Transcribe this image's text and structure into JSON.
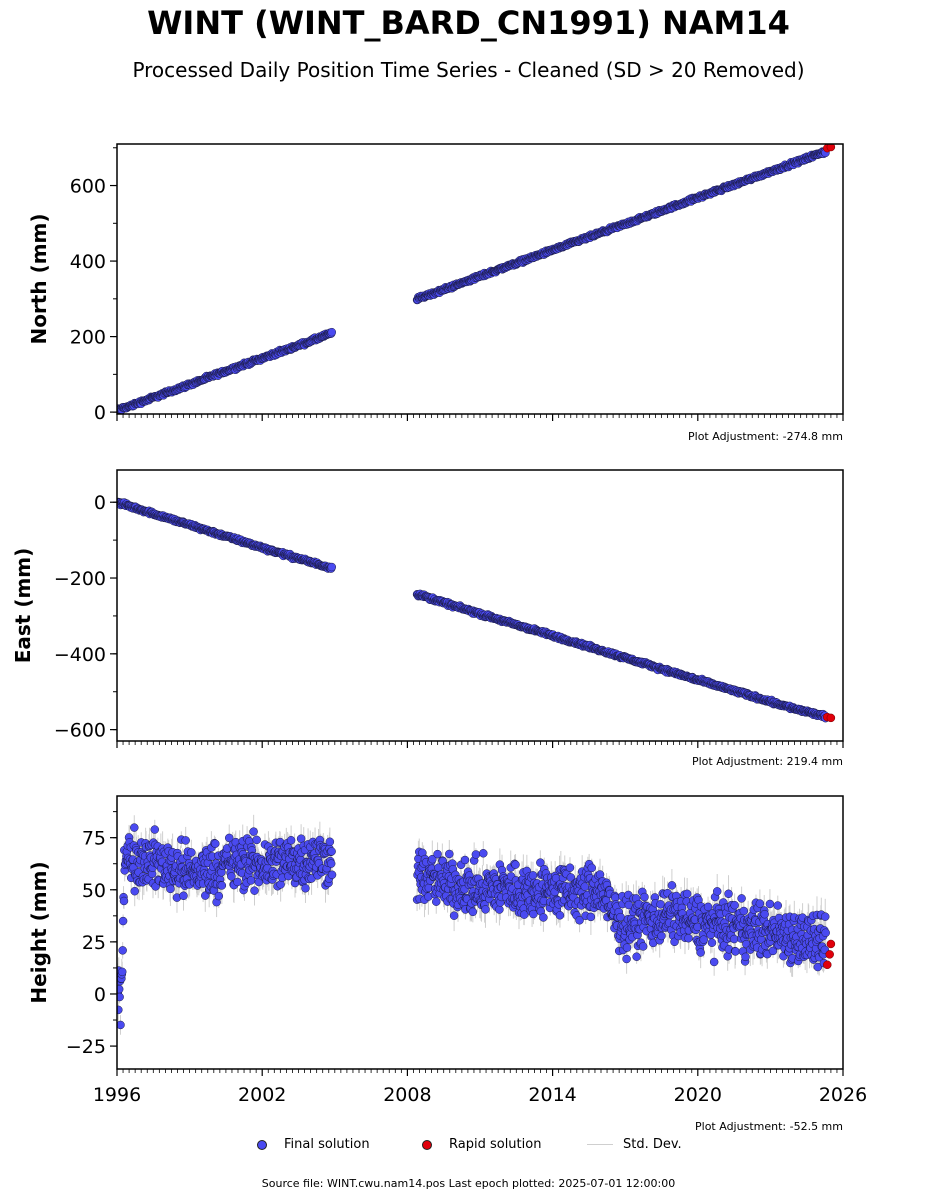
{
  "title": "WINT (WINT_BARD_CN1991) NAM14",
  "subtitle": "Processed Daily Position Time Series - Cleaned (SD > 20 Removed)",
  "colors": {
    "final": "#4a4af0",
    "rapid": "#e0000b",
    "stddev": "#cfcfcf",
    "edge": "#1a1a40"
  },
  "legend": {
    "final": "Final solution",
    "rapid": "Rapid solution",
    "stddev": "Std. Dev."
  },
  "source_note": "Source file: WINT.cwu.nam14.pos  Last epoch plotted: 2025-07-01 12:00:00",
  "chart_data": [
    {
      "type": "scatter",
      "ylabel": "North (mm)",
      "adjustment": "Plot Adjustment: -274.8 mm",
      "xlim": [
        1996,
        2026
      ],
      "ylim": [
        -5,
        710
      ],
      "yticks": [
        0,
        200,
        400,
        600
      ],
      "segments": [
        {
          "x": [
            1996.0,
            1996.5,
            1997.0,
            1998.0,
            1999.0,
            2000.0,
            2001.0,
            2002.0,
            2003.0,
            2004.0,
            2004.9
          ],
          "y": [
            5,
            15,
            27,
            50,
            73,
            97,
            120,
            143,
            165,
            188,
            210
          ]
        },
        {
          "x": [
            2008.4,
            2009.0,
            2010.0,
            2011.0,
            2012.0,
            2013.0,
            2014.0,
            2015.0,
            2016.0,
            2017.0,
            2018.0,
            2019.0,
            2020.0,
            2021.0,
            2022.0,
            2023.0,
            2024.0,
            2025.0,
            2025.3
          ],
          "y": [
            300,
            313,
            336,
            360,
            383,
            406,
            429,
            452,
            475,
            498,
            521,
            545,
            568,
            591,
            614,
            637,
            660,
            684,
            690
          ]
        }
      ],
      "rapid": {
        "x": [
          2025.35,
          2025.5
        ],
        "y": [
          699,
          702
        ]
      },
      "noise": 3
    },
    {
      "type": "scatter",
      "ylabel": "East (mm)",
      "adjustment": "Plot Adjustment: 219.4 mm",
      "xlim": [
        1996,
        2026
      ],
      "ylim": [
        -630,
        85
      ],
      "yticks": [
        0,
        -200,
        -400,
        -600
      ],
      "ytick_labels": [
        "0",
        "−200",
        "−400",
        "−600"
      ],
      "segments": [
        {
          "x": [
            1996.0,
            1997.0,
            1998.0,
            1999.0,
            2000.0,
            2001.0,
            2002.0,
            2003.0,
            2004.0,
            2004.9
          ],
          "y": [
            0,
            -20,
            -40,
            -60,
            -80,
            -100,
            -120,
            -139,
            -158,
            -174
          ]
        },
        {
          "x": [
            2008.4,
            2010.0,
            2012.0,
            2014.0,
            2016.0,
            2018.0,
            2020.0,
            2022.0,
            2024.0,
            2025.3
          ],
          "y": [
            -242,
            -275,
            -314,
            -352,
            -391,
            -430,
            -469,
            -507,
            -545,
            -566
          ]
        }
      ],
      "rapid": {
        "x": [
          2025.35,
          2025.5
        ],
        "y": [
          -567,
          -569
        ]
      },
      "noise": 3
    },
    {
      "type": "scatter",
      "ylabel": "Height (mm)",
      "adjustment": "Plot Adjustment: -52.5 mm",
      "xlim": [
        1996,
        2026
      ],
      "ylim": [
        -36,
        95
      ],
      "yticks": [
        75,
        50,
        25,
        0,
        -25
      ],
      "ytick_labels": [
        "75",
        "50",
        "25",
        "0",
        "−25"
      ],
      "xticks": [
        1996,
        2002,
        2008,
        2014,
        2020,
        2026
      ],
      "segments": [
        {
          "x": [
            1996.0,
            1996.1,
            1996.2,
            1996.3
          ],
          "y": [
            -5,
            0,
            5,
            60
          ]
        },
        {
          "x": [
            1996.3,
            1997.0,
            1998.0,
            1999.0,
            2000.0,
            2001.0,
            2002.0,
            2003.0,
            2004.0,
            2004.9
          ],
          "y": [
            65,
            65,
            62,
            58,
            60,
            63,
            62,
            64,
            65,
            65
          ]
        },
        {
          "x": [
            2008.4,
            2009.0,
            2010.0,
            2011.0,
            2012.0,
            2013.0,
            2014.0,
            2015.0,
            2016.0,
            2016.5,
            2017.0,
            2018.0,
            2019.0,
            2020.0,
            2021.0,
            2022.0,
            2023.0,
            2024.0,
            2025.3
          ],
          "y": [
            57,
            55,
            52,
            50,
            51,
            49,
            50,
            48,
            50,
            37,
            33,
            36,
            38,
            34,
            33,
            31,
            30,
            28,
            23
          ]
        }
      ],
      "rapid": {
        "x": [
          2025.35,
          2025.45,
          2025.5
        ],
        "y": [
          14,
          19,
          24
        ]
      },
      "noise": 9
    }
  ]
}
